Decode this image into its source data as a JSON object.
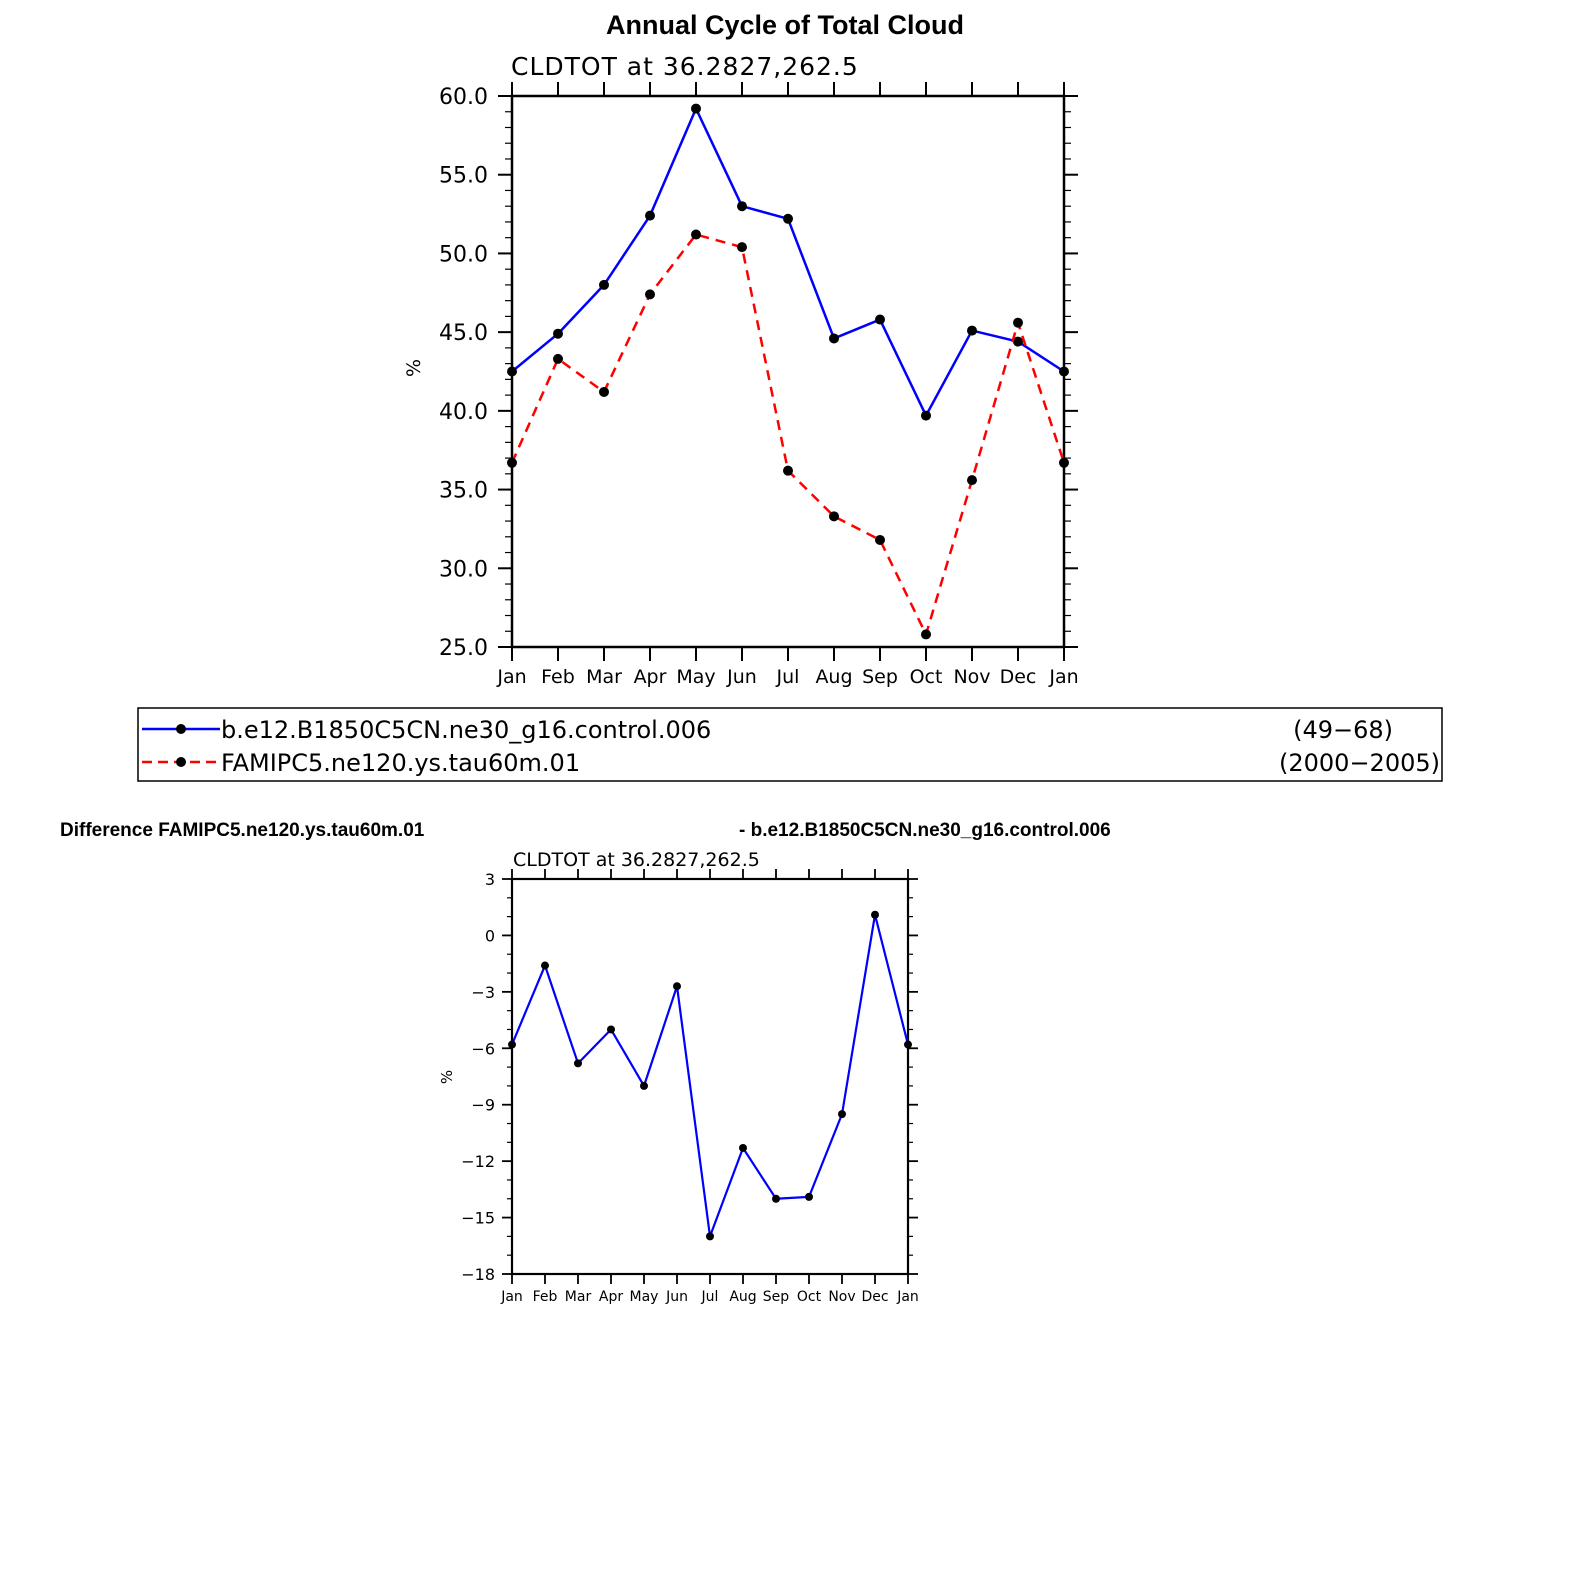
{
  "chart_data": [
    {
      "type": "line",
      "title": "Annual Cycle of Total Cloud",
      "subtitle": "CLDTOT  at  36.2827,262.5",
      "xlabel": "",
      "ylabel": "%",
      "categories": [
        "Jan",
        "Feb",
        "Mar",
        "Apr",
        "May",
        "Jun",
        "Jul",
        "Aug",
        "Sep",
        "Oct",
        "Nov",
        "Dec",
        "Jan"
      ],
      "ylim": [
        25.0,
        60.0
      ],
      "yticks": [
        "25.0",
        "30.0",
        "35.0",
        "40.0",
        "45.0",
        "50.0",
        "55.0",
        "60.0"
      ],
      "series": [
        {
          "name": "b.e12.B1850C5CN.ne30_g16.control.006",
          "period": "(49−68)",
          "color": "#0000ff",
          "dash": "solid",
          "values": [
            42.5,
            44.9,
            48.0,
            52.4,
            59.2,
            53.0,
            52.2,
            44.6,
            45.8,
            39.7,
            45.1,
            44.4,
            42.5
          ]
        },
        {
          "name": "FAMIPC5.ne120.ys.tau60m.01",
          "period": "(2000−2005)",
          "color": "#ff0000",
          "dash": "dashed",
          "values": [
            36.7,
            43.3,
            41.2,
            47.4,
            51.2,
            50.4,
            36.2,
            33.3,
            31.8,
            25.8,
            35.6,
            45.6,
            36.7
          ]
        }
      ]
    },
    {
      "type": "line",
      "title_left": "Difference FAMIPC5.ne120.ys.tau60m.01",
      "title_right": "- b.e12.B1850C5CN.ne30_g16.control.006",
      "subtitle": "CLDTOT  at  36.2827,262.5",
      "xlabel": "",
      "ylabel": "%",
      "categories": [
        "Jan",
        "Feb",
        "Mar",
        "Apr",
        "May",
        "Jun",
        "Jul",
        "Aug",
        "Sep",
        "Oct",
        "Nov",
        "Dec",
        "Jan"
      ],
      "ylim": [
        -18,
        3
      ],
      "yticks": [
        "−18",
        "−15",
        "−12",
        "−9",
        "−6",
        "−3",
        "0",
        "3"
      ],
      "series": [
        {
          "name": "Difference",
          "color": "#0000ff",
          "dash": "solid",
          "values": [
            -5.8,
            -1.6,
            -6.8,
            -5.0,
            -8.0,
            -2.7,
            -16.0,
            -11.3,
            -14.0,
            -13.9,
            -9.5,
            1.1,
            -5.8
          ]
        }
      ]
    }
  ]
}
